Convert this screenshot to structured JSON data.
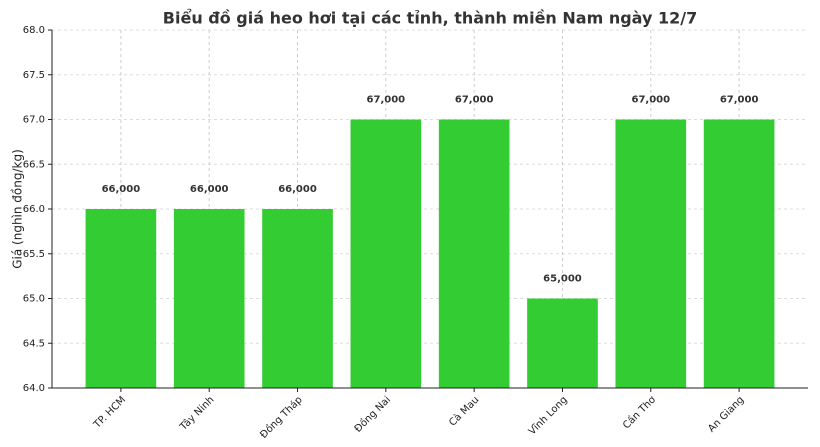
{
  "chart_data": {
    "type": "bar",
    "title": "Biểu đồ giá heo hơi tại các tỉnh, thành miền Nam ngày 12/7",
    "y_label": "Giá (nghìn đồng/kg)",
    "categories": [
      "TP. HCM",
      "Tây Ninh",
      "Đồng Tháp",
      "Đồng Nai",
      "Cà Mau",
      "Vĩnh Long",
      "Cần Thơ",
      "An Giang"
    ],
    "values": [
      66,
      66,
      66,
      67,
      67,
      65,
      67,
      67
    ],
    "value_labels": [
      "66,000",
      "66,000",
      "66,000",
      "67,000",
      "67,000",
      "65,000",
      "67,000",
      "67,000"
    ],
    "color": "#33cc33",
    "ylim": [
      64,
      68
    ],
    "yticks": [
      {
        "value": 64,
        "label": "64.0"
      },
      {
        "value": 64.5,
        "label": "64.5"
      },
      {
        "value": 65,
        "label": "65.0"
      },
      {
        "value": 65.5,
        "label": "65.5"
      },
      {
        "value": 66,
        "label": "66.0"
      },
      {
        "value": 66.5,
        "label": "66.5"
      },
      {
        "value": 67,
        "label": "67.0"
      },
      {
        "value": 67.5,
        "label": "67.5"
      },
      {
        "value": 68,
        "label": "68.0"
      }
    ],
    "grid": true
  }
}
